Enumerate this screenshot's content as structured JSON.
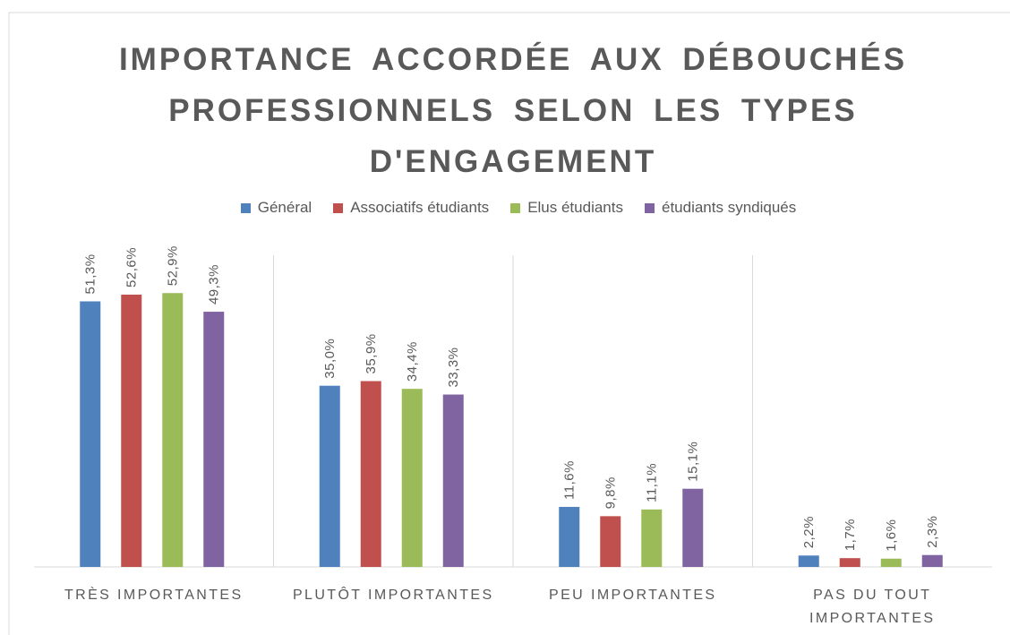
{
  "chart_data": {
    "type": "bar",
    "title": "IMPORTANCE ACCORDÉE AUX DÉBOUCHÉS PROFESSIONNELS SELON LES TYPES D'ENGAGEMENT",
    "categories": [
      "TRÈS IMPORTANTES",
      "PLUTÔT IMPORTANTES",
      "PEU IMPORTANTES",
      "PAS DU TOUT IMPORTANTES"
    ],
    "series": [
      {
        "name": "Général",
        "color": "#4f81bd",
        "values": [
          51.3,
          35.0,
          11.6,
          2.2
        ],
        "value_labels": [
          "51,3%",
          "35,0%",
          "11,6%",
          "2,2%"
        ]
      },
      {
        "name": "Associatifs étudiants",
        "color": "#c0504d",
        "values": [
          52.6,
          35.9,
          9.8,
          1.7
        ],
        "value_labels": [
          "52,6%",
          "35,9%",
          "9,8%",
          "1,7%"
        ]
      },
      {
        "name": "Elus étudiants",
        "color": "#9bbb59",
        "values": [
          52.9,
          34.4,
          11.1,
          1.6
        ],
        "value_labels": [
          "52,9%",
          "34,4%",
          "11,1%",
          "1,6%"
        ]
      },
      {
        "name": "étudiants syndiqués",
        "color": "#8064a2",
        "values": [
          49.3,
          33.3,
          15.1,
          2.3
        ],
        "value_labels": [
          "49,3%",
          "33,3%",
          "15,1%",
          "2,3%"
        ]
      }
    ],
    "legend": "top"
  }
}
